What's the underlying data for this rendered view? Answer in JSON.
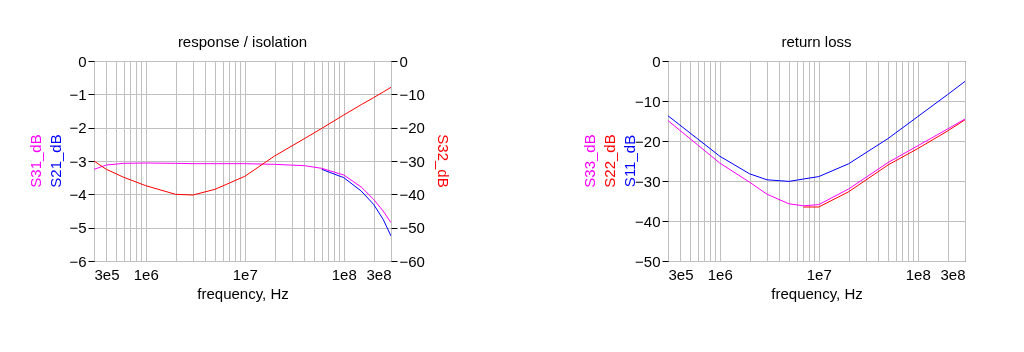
{
  "chart_data": [
    {
      "type": "line",
      "title": "response / isolation",
      "xlabel": "frequency, Hz",
      "log": "x",
      "grid": true,
      "x": [
        300000,
        400000,
        600000,
        1000000,
        2000000,
        3000000,
        5000000,
        10000000,
        20000000,
        40000000,
        60000000,
        100000000,
        150000000,
        200000000,
        250000000,
        300000000
      ],
      "xlim": [
        300000,
        300000000
      ],
      "xticks": [
        {
          "value": 300000,
          "label": "3e5"
        },
        {
          "value": 1000000,
          "label": "1e6"
        },
        {
          "value": 10000000,
          "label": "1e7"
        },
        {
          "value": 100000000,
          "label": "1e8"
        },
        {
          "value": 300000000,
          "label": "3e8"
        }
      ],
      "ylim": [
        -6,
        0
      ],
      "yticks": [
        -6,
        -5,
        -4,
        -3,
        -2,
        -1,
        0
      ],
      "y2lim": [
        -60,
        0
      ],
      "y2ticks": [
        -60,
        -50,
        -40,
        -30,
        -20,
        -10,
        0
      ],
      "series": [
        {
          "name": "S31_dB",
          "color": "#ff00ff",
          "values": [
            -3.25,
            -3.12,
            -3.07,
            -3.06,
            -3.07,
            -3.08,
            -3.08,
            -3.08,
            -3.1,
            -3.14,
            -3.22,
            -3.42,
            -3.78,
            -4.15,
            -4.5,
            -4.85
          ]
        },
        {
          "name": "S21_dB",
          "color": "#0000ff",
          "values": [
            null,
            null,
            null,
            null,
            null,
            null,
            null,
            null,
            null,
            null,
            -3.25,
            -3.5,
            -3.9,
            -4.3,
            -4.75,
            -5.25
          ]
        },
        {
          "name": "S32_dB",
          "color": "#ff0000",
          "axis": "y2",
          "values": [
            -30,
            -32.5,
            -34.9,
            -37.4,
            -40,
            -40.2,
            -38.5,
            -34.6,
            -28.5,
            -23.3,
            -20.2,
            -16.2,
            -13.1,
            -11,
            -9.3,
            -7.9
          ]
        }
      ]
    },
    {
      "type": "line",
      "title": "return loss",
      "xlabel": "frequency, Hz",
      "log": "x",
      "grid": true,
      "x": [
        300000,
        600000,
        1000000,
        2000000,
        3000000,
        5000000,
        7000000,
        10000000,
        20000000,
        50000000,
        100000000,
        200000000,
        300000000
      ],
      "xlim": [
        300000,
        300000000
      ],
      "xticks": [
        {
          "value": 300000,
          "label": "3e5"
        },
        {
          "value": 1000000,
          "label": "1e6"
        },
        {
          "value": 10000000,
          "label": "1e7"
        },
        {
          "value": 100000000,
          "label": "1e8"
        },
        {
          "value": 300000000,
          "label": "3e8"
        }
      ],
      "ylim": [
        -50,
        0
      ],
      "yticks": [
        -50,
        -40,
        -30,
        -20,
        -10,
        0
      ],
      "series": [
        {
          "name": "S33_dB",
          "color": "#ff00ff",
          "values": [
            -14.9,
            -21,
            -25.5,
            -30.3,
            -33.3,
            -35.7,
            -36.2,
            -35.9,
            -32,
            -25.4,
            -21.2,
            -17,
            -14.5
          ]
        },
        {
          "name": "S22_dB",
          "color": "#ff0000",
          "values": [
            null,
            null,
            null,
            null,
            null,
            null,
            -36.5,
            -36.5,
            -32.7,
            -26,
            -21.9,
            -17.5,
            -14.7
          ]
        },
        {
          "name": "S11_dB",
          "color": "#0000ff",
          "values": [
            -13.7,
            -19.5,
            -23.8,
            -28.2,
            -29.7,
            -30.1,
            -29.5,
            -28.9,
            -25.7,
            -19.4,
            -13.9,
            -8.4,
            -5.1
          ]
        }
      ]
    }
  ]
}
